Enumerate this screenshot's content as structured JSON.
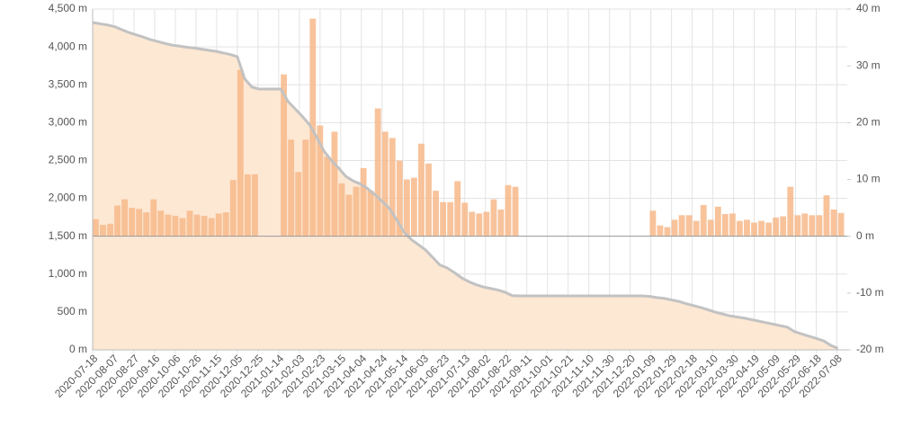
{
  "chart_data": {
    "type": "combo",
    "x": [
      "2020-07-18",
      "2020-07-25",
      "2020-08-01",
      "2020-08-08",
      "2020-08-15",
      "2020-08-22",
      "2020-08-29",
      "2020-09-05",
      "2020-09-12",
      "2020-09-19",
      "2020-09-26",
      "2020-10-03",
      "2020-10-10",
      "2020-10-17",
      "2020-10-24",
      "2020-10-31",
      "2020-11-07",
      "2020-11-14",
      "2020-11-21",
      "2020-11-28",
      "2020-12-05",
      "2020-12-12",
      "2020-12-19",
      "2020-12-26",
      "2021-01-02",
      "2021-01-09",
      "2021-01-16",
      "2021-01-23",
      "2021-01-30",
      "2021-02-06",
      "2021-02-13",
      "2021-02-20",
      "2021-02-27",
      "2021-03-06",
      "2021-03-13",
      "2021-03-20",
      "2021-03-27",
      "2021-04-03",
      "2021-04-10",
      "2021-04-17",
      "2021-04-24",
      "2021-05-01",
      "2021-05-08",
      "2021-05-15",
      "2021-05-22",
      "2021-05-29",
      "2021-06-05",
      "2021-06-12",
      "2021-06-19",
      "2021-06-26",
      "2021-07-03",
      "2021-07-10",
      "2021-07-17",
      "2021-07-24",
      "2021-07-31",
      "2021-08-07",
      "2021-08-14",
      "2021-08-21",
      "2021-08-28",
      "2021-09-04",
      "2021-09-11",
      "2021-09-18",
      "2021-09-25",
      "2021-10-02",
      "2021-10-09",
      "2021-10-16",
      "2021-10-23",
      "2021-10-30",
      "2021-11-06",
      "2021-11-13",
      "2021-11-20",
      "2021-11-27",
      "2021-12-04",
      "2021-12-11",
      "2021-12-18",
      "2021-12-25",
      "2022-01-01",
      "2022-01-08",
      "2022-01-15",
      "2022-01-22",
      "2022-01-29",
      "2022-02-05",
      "2022-02-12",
      "2022-02-19",
      "2022-02-26",
      "2022-03-05",
      "2022-03-12",
      "2022-03-19",
      "2022-03-26",
      "2022-04-02",
      "2022-04-09",
      "2022-04-16",
      "2022-04-23",
      "2022-04-30",
      "2022-05-07",
      "2022-05-14",
      "2022-05-21",
      "2022-05-28",
      "2022-06-04",
      "2022-06-11",
      "2022-06-18",
      "2022-06-25",
      "2022-07-02",
      "2022-07-09"
    ],
    "series": [
      {
        "type": "line",
        "color": "#c2c2c2",
        "fill": "#fde8d4",
        "values": [
          4322,
          4305,
          4290,
          4268,
          4228,
          4190,
          4160,
          4130,
          4095,
          4070,
          4045,
          4022,
          4010,
          3995,
          3985,
          3970,
          3955,
          3942,
          3920,
          3900,
          3870,
          3580,
          3470,
          3443,
          3443,
          3443,
          3443,
          3280,
          3180,
          3080,
          2970,
          2800,
          2620,
          2500,
          2400,
          2290,
          2230,
          2190,
          2130,
          2050,
          1960,
          1870,
          1720,
          1560,
          1460,
          1390,
          1320,
          1220,
          1120,
          1080,
          1020,
          950,
          900,
          860,
          830,
          810,
          790,
          760,
          715,
          712,
          712,
          712,
          712,
          712,
          712,
          712,
          712,
          712,
          712,
          712,
          712,
          712,
          712,
          712,
          712,
          712,
          712,
          705,
          690,
          680,
          660,
          640,
          610,
          585,
          560,
          530,
          500,
          475,
          450,
          435,
          420,
          400,
          380,
          360,
          340,
          320,
          300,
          240,
          210,
          180,
          150,
          120,
          60,
          20
        ]
      },
      {
        "type": "bar",
        "axis": "y2",
        "color": "#f7b98a",
        "values": [
          3,
          2,
          2.2,
          5.4,
          6.5,
          5,
          4.8,
          4.2,
          6.5,
          4.5,
          3.8,
          3.6,
          3.2,
          4.5,
          3.8,
          3.6,
          3.2,
          4,
          4.2,
          9.9,
          29.3,
          10.9,
          10.9,
          null,
          null,
          null,
          28.5,
          17,
          11.3,
          17,
          38.3,
          19.5,
          14,
          18.4,
          9.3,
          7.3,
          8.7,
          12,
          8,
          22.5,
          18.4,
          17.3,
          13.3,
          10,
          10.3,
          16.3,
          12.8,
          8,
          6,
          6,
          9.7,
          5.9,
          4.3,
          4,
          4.3,
          6.5,
          4.7,
          9,
          8.7,
          null,
          null,
          null,
          null,
          null,
          null,
          null,
          null,
          null,
          null,
          null,
          null,
          null,
          null,
          null,
          null,
          null,
          null,
          4.5,
          1.9,
          1.6,
          2.9,
          3.7,
          3.7,
          2.7,
          5.5,
          2.9,
          5.2,
          3.9,
          4,
          2.7,
          2.9,
          2.4,
          2.7,
          2.4,
          3.3,
          3.5,
          8.7,
          3.7,
          4,
          3.7,
          3.7,
          7.2,
          4.7,
          4.1
        ]
      }
    ],
    "xlim": [
      "2020-07-18",
      "2022-07-18"
    ],
    "xticks": [
      "2020-07-18",
      "2020-08-07",
      "2020-08-27",
      "2020-09-16",
      "2020-10-06",
      "2020-10-26",
      "2020-11-15",
      "2020-12-05",
      "2020-12-25",
      "2021-01-14",
      "2021-02-03",
      "2021-02-23",
      "2021-03-15",
      "2021-04-04",
      "2021-04-24",
      "2021-05-14",
      "2021-06-03",
      "2021-06-23",
      "2021-07-13",
      "2021-08-02",
      "2021-08-22",
      "2021-09-11",
      "2021-10-01",
      "2021-10-21",
      "2021-11-10",
      "2021-11-30",
      "2021-12-20",
      "2022-01-09",
      "2022-01-29",
      "2022-02-18",
      "2022-03-10",
      "2022-03-30",
      "2022-04-19",
      "2022-05-09",
      "2022-05-29",
      "2022-06-18",
      "2022-07-08"
    ],
    "ylim": [
      0,
      4500
    ],
    "yticks": [
      {
        "value": 0,
        "label": "0 m"
      },
      {
        "value": 500,
        "label": "500 m"
      },
      {
        "value": 1000,
        "label": "1,000 m"
      },
      {
        "value": 1500,
        "label": "1,500 m"
      },
      {
        "value": 2000,
        "label": "2,000 m"
      },
      {
        "value": 2500,
        "label": "2,500 m"
      },
      {
        "value": 3000,
        "label": "3,000 m"
      },
      {
        "value": 3500,
        "label": "3,500 m"
      },
      {
        "value": 4000,
        "label": "4,000 m"
      },
      {
        "value": 4500,
        "label": "4,500 m"
      }
    ],
    "y2lim": [
      -20,
      40
    ],
    "y2ticks": [
      {
        "value": -20,
        "label": "-20 m"
      },
      {
        "value": -10,
        "label": "-10 m"
      },
      {
        "value": 0,
        "label": "0 m"
      },
      {
        "value": 10,
        "label": "10 m"
      },
      {
        "value": 20,
        "label": "20 m"
      },
      {
        "value": 30,
        "label": "30 m"
      },
      {
        "value": 40,
        "label": "40 m"
      }
    ],
    "grid": true
  }
}
